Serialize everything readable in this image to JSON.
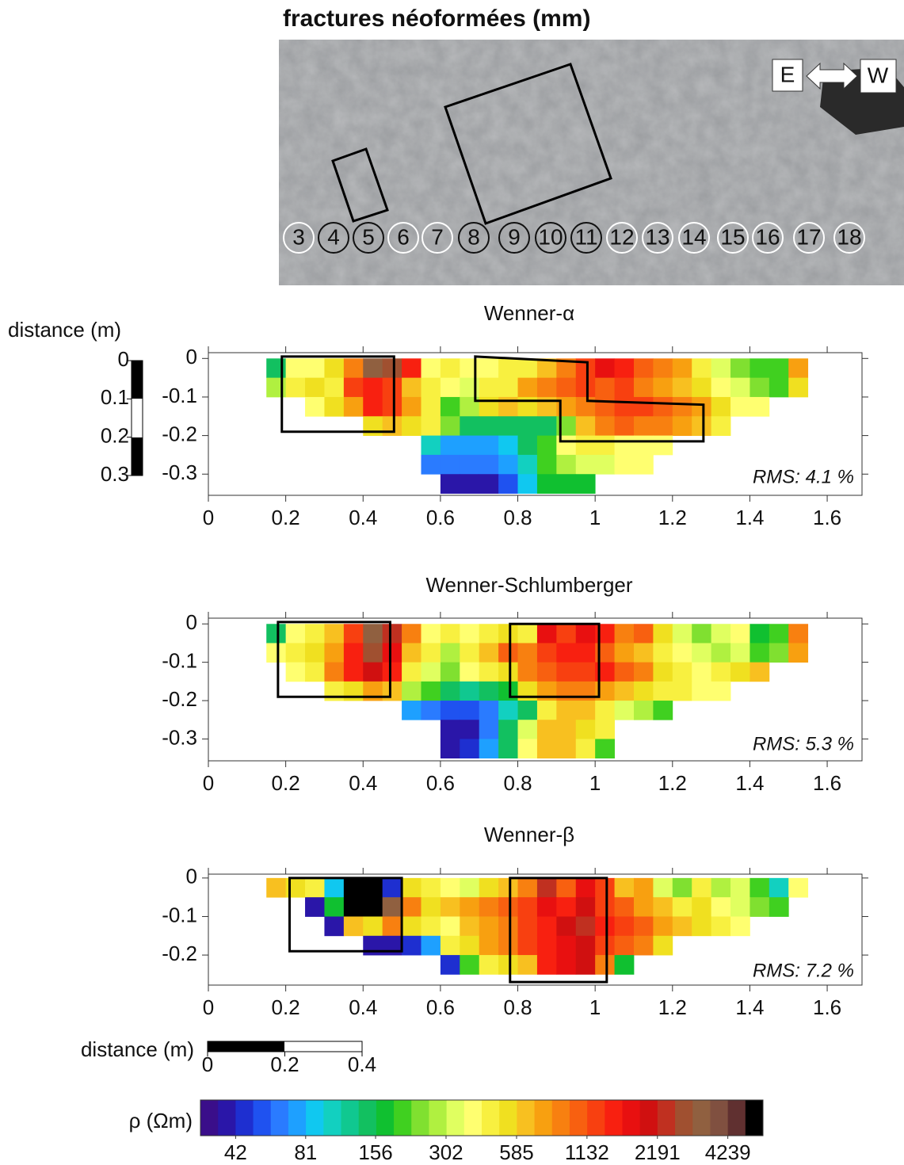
{
  "photo": {
    "title": "fractures néoformées (mm)",
    "markers": [
      3,
      4,
      5,
      6,
      7,
      8,
      9,
      10,
      11,
      12,
      13,
      14,
      15,
      16,
      17,
      18
    ],
    "orientation": {
      "left": "E",
      "right": "W"
    }
  },
  "scale_bar_left": {
    "label": "distance (m)",
    "ticks": [
      0,
      0.1,
      0.2,
      0.3
    ]
  },
  "chart_data": [
    {
      "type": "heatmap",
      "title": "Wenner-α",
      "annotation": "RMS: 4.1 %",
      "xlim": [
        0,
        1.69
      ],
      "ylim": [
        -0.355,
        0.015
      ],
      "xticks": [
        0,
        0.2,
        0.4,
        0.6,
        0.8,
        1,
        1.2,
        1.4,
        1.6
      ],
      "yticks": [
        0,
        -0.1,
        -0.2,
        -0.3
      ],
      "x_bins": [
        0.15,
        0.2,
        0.25,
        0.3,
        0.35,
        0.4,
        0.45,
        0.5,
        0.55,
        0.6,
        0.65,
        0.7,
        0.75,
        0.8,
        0.85,
        0.9,
        0.95,
        1,
        1.05,
        1.1,
        1.15,
        1.2,
        1.25,
        1.3,
        1.35,
        1.4,
        1.45,
        1.5,
        1.55
      ],
      "y_bins": [
        0,
        -0.05,
        -0.1,
        -0.15,
        -0.2,
        -0.25,
        -0.3,
        -0.35
      ],
      "values": [
        [
          144,
          386,
          386,
          537,
          883,
          3308,
          2806,
          1449,
          386,
          455,
          386,
          386,
          455,
          455,
          635,
          883,
          1229,
          1708,
          1449,
          1041,
          883,
          749,
          455,
          328,
          236,
          200,
          200,
          749
        ],
        [
          278,
          455,
          537,
          455,
          1229,
          1449,
          1229,
          635,
          455,
          386,
          328,
          455,
          455,
          749,
          883,
          1041,
          1229,
          1041,
          1229,
          883,
          749,
          635,
          537,
          386,
          328,
          236,
          200,
          537
        ],
        [
          null,
          null,
          386,
          537,
          749,
          1449,
          1229,
          749,
          455,
          200,
          278,
          537,
          635,
          537,
          635,
          749,
          883,
          1041,
          1229,
          1229,
          1041,
          883,
          749,
          537,
          386,
          386,
          null,
          null
        ],
        [
          null,
          null,
          null,
          null,
          null,
          537,
          635,
          537,
          455,
          236,
          144,
          144,
          144,
          144,
          144,
          236,
          635,
          883,
          1041,
          883,
          883,
          749,
          635,
          455,
          null,
          null,
          null,
          null
        ],
        [
          null,
          null,
          null,
          null,
          null,
          null,
          null,
          null,
          104,
          75,
          75,
          75,
          88,
          144,
          200,
          386,
          455,
          455,
          386,
          386,
          386,
          null,
          null,
          null,
          null,
          null,
          null,
          null
        ],
        [
          null,
          null,
          null,
          null,
          null,
          null,
          null,
          null,
          63,
          63,
          63,
          63,
          75,
          104,
          200,
          278,
          328,
          328,
          386,
          386,
          null,
          null,
          null,
          null,
          null,
          null,
          null,
          null
        ],
        [
          null,
          null,
          null,
          null,
          null,
          null,
          null,
          null,
          null,
          39,
          39,
          39,
          54,
          88,
          170,
          170,
          170,
          null,
          null,
          null,
          null,
          null,
          null,
          null,
          null,
          null,
          null,
          null
        ]
      ]
    },
    {
      "type": "heatmap",
      "title": "Wenner-Schlumberger",
      "annotation": "RMS: 5.3 %",
      "xlim": [
        0,
        1.69
      ],
      "ylim": [
        -0.357,
        0.015
      ],
      "xticks": [
        0,
        0.2,
        0.4,
        0.6,
        0.8,
        1,
        1.2,
        1.4,
        1.6
      ],
      "yticks": [
        0,
        -0.1,
        -0.2,
        -0.3
      ],
      "x_bins": [
        0.15,
        0.2,
        0.25,
        0.3,
        0.35,
        0.4,
        0.45,
        0.5,
        0.55,
        0.6,
        0.65,
        0.7,
        0.75,
        0.8,
        0.85,
        0.9,
        0.95,
        1,
        1.05,
        1.1,
        1.15,
        1.2,
        1.25,
        1.3,
        1.35,
        1.4,
        1.45,
        1.5,
        1.55
      ],
      "y_bins": [
        0,
        -0.05,
        -0.1,
        -0.15,
        -0.2,
        -0.25,
        -0.3,
        -0.35
      ],
      "values": [
        [
          144,
          386,
          455,
          635,
          1229,
          3308,
          2380,
          883,
          386,
          455,
          386,
          455,
          537,
          455,
          1708,
          1229,
          1708,
          1449,
          883,
          1041,
          537,
          328,
          236,
          328,
          386,
          170,
          200,
          883
        ],
        [
          386,
          455,
          537,
          749,
          1449,
          2806,
          1708,
          635,
          455,
          278,
          455,
          635,
          1041,
          883,
          1229,
          1449,
          1449,
          1041,
          749,
          635,
          455,
          386,
          328,
          278,
          328,
          200,
          236,
          749
        ],
        [
          null,
          386,
          455,
          883,
          1449,
          2014,
          1449,
          455,
          328,
          236,
          386,
          455,
          537,
          883,
          1041,
          1229,
          1229,
          1449,
          1041,
          883,
          537,
          455,
          386,
          455,
          537,
          635,
          null,
          null
        ],
        [
          null,
          null,
          null,
          455,
          537,
          749,
          635,
          278,
          200,
          144,
          122,
          144,
          170,
          537,
          749,
          883,
          883,
          749,
          635,
          537,
          455,
          455,
          386,
          386,
          null,
          null,
          null,
          null
        ],
        [
          null,
          null,
          null,
          null,
          null,
          null,
          null,
          75,
          63,
          54,
          54,
          63,
          104,
          144,
          455,
          635,
          635,
          455,
          328,
          278,
          200,
          null,
          null,
          null,
          null,
          null,
          null,
          null
        ],
        [
          null,
          null,
          null,
          null,
          null,
          null,
          null,
          null,
          null,
          39,
          39,
          63,
          144,
          328,
          635,
          635,
          537,
          455,
          null,
          null,
          null,
          null,
          null,
          null,
          null,
          null,
          null,
          null
        ],
        [
          null,
          null,
          null,
          null,
          null,
          null,
          null,
          null,
          null,
          39,
          46,
          75,
          144,
          386,
          635,
          635,
          455,
          200,
          null,
          null,
          null,
          null,
          null,
          null,
          null,
          null,
          null,
          null
        ]
      ]
    },
    {
      "type": "heatmap",
      "title": "Wenner-β",
      "annotation": "RMS: 7.2 %",
      "xlim": [
        0,
        1.69
      ],
      "ylim": [
        -0.278,
        0.01
      ],
      "xticks": [
        0,
        0.2,
        0.4,
        0.6,
        0.8,
        1,
        1.2,
        1.4,
        1.6
      ],
      "yticks": [
        0,
        -0.1,
        -0.2
      ],
      "x_bins": [
        0.15,
        0.2,
        0.25,
        0.3,
        0.35,
        0.4,
        0.45,
        0.5,
        0.55,
        0.6,
        0.65,
        0.7,
        0.75,
        0.8,
        0.85,
        0.9,
        0.95,
        1,
        1.05,
        1.1,
        1.15,
        1.2,
        1.25,
        1.3,
        1.35,
        1.4,
        1.45,
        1.5,
        1.55
      ],
      "y_bins": [
        0,
        -0.05,
        -0.1,
        -0.15,
        -0.2,
        -0.25
      ],
      "values": [
        [
          635,
          537,
          455,
          88,
          5427,
          5427,
          46,
          537,
          455,
          386,
          328,
          537,
          635,
          883,
          2380,
          1041,
          1708,
          1229,
          635,
          749,
          328,
          236,
          455,
          278,
          328,
          200,
          104,
          386
        ],
        [
          null,
          null,
          39,
          170,
          5427,
          5427,
          3308,
          883,
          537,
          635,
          749,
          883,
          1041,
          1229,
          1708,
          1449,
          2014,
          1229,
          1041,
          749,
          635,
          455,
          537,
          386,
          328,
          236,
          200,
          null
        ],
        [
          null,
          null,
          null,
          39,
          635,
          537,
          883,
          537,
          455,
          386,
          635,
          749,
          883,
          1229,
          1449,
          2014,
          2380,
          1449,
          1229,
          1041,
          749,
          635,
          537,
          455,
          386,
          null,
          null,
          null
        ],
        [
          null,
          null,
          null,
          null,
          null,
          39,
          39,
          46,
          75,
          455,
          537,
          749,
          883,
          1229,
          1449,
          1708,
          2014,
          1229,
          1041,
          883,
          537,
          null,
          null,
          null,
          null,
          null,
          null,
          null
        ],
        [
          null,
          null,
          null,
          null,
          null,
          null,
          null,
          null,
          null,
          46,
          200,
          455,
          537,
          635,
          1449,
          1708,
          2014,
          883,
          170,
          null,
          null,
          null,
          null,
          null,
          null,
          null,
          null,
          null
        ]
      ]
    }
  ],
  "scale_bar_bottom": {
    "label": "distance (m)",
    "ticks": [
      0,
      0.2,
      0.4
    ]
  },
  "colorbar": {
    "label": "ρ (Ωm)",
    "ticks": [
      42,
      81,
      156,
      302,
      585,
      1132,
      2191,
      4239
    ],
    "colors": [
      "#3a0e8a",
      "#2a16a8",
      "#1e2fd0",
      "#1f52f0",
      "#2a7bff",
      "#1ea0ff",
      "#10c8f0",
      "#12d0c0",
      "#10c890",
      "#12c060",
      "#10c030",
      "#40d020",
      "#80e030",
      "#b0f040",
      "#e0ff60",
      "#ffff70",
      "#f8f040",
      "#f0e020",
      "#f8c020",
      "#f8a010",
      "#f88010",
      "#f86010",
      "#f84010",
      "#f82010",
      "#e81010",
      "#d01010",
      "#c03020",
      "#a05030",
      "#906040",
      "#805040",
      "#603030",
      "#000000"
    ]
  }
}
